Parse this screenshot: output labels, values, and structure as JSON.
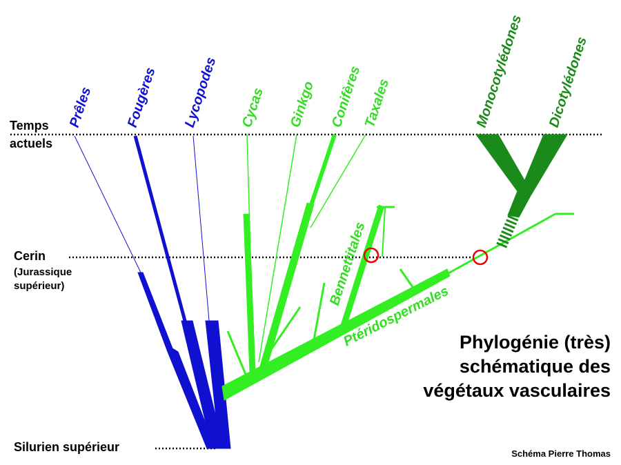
{
  "title": [
    "Phylogénie (très)",
    "schématique des",
    "végétaux vasculaires"
  ],
  "time_labels": {
    "present": [
      "Temps",
      "actuels"
    ],
    "cerin": "Cerin",
    "cerin_detail": [
      "(Jurassique",
      "supérieur)"
    ],
    "silurian": "Silurien supérieur"
  },
  "taxa": [
    "Prêles",
    "Fougères",
    "Lycopodes",
    "Cycas",
    "Ginkgo",
    "Conifères",
    "Taxales",
    "Monocotylédones",
    "Dicotylédones"
  ],
  "branches": [
    "Bennettitales",
    "Ptéridospermales"
  ],
  "credit": "Schéma Pierre Thomas"
}
